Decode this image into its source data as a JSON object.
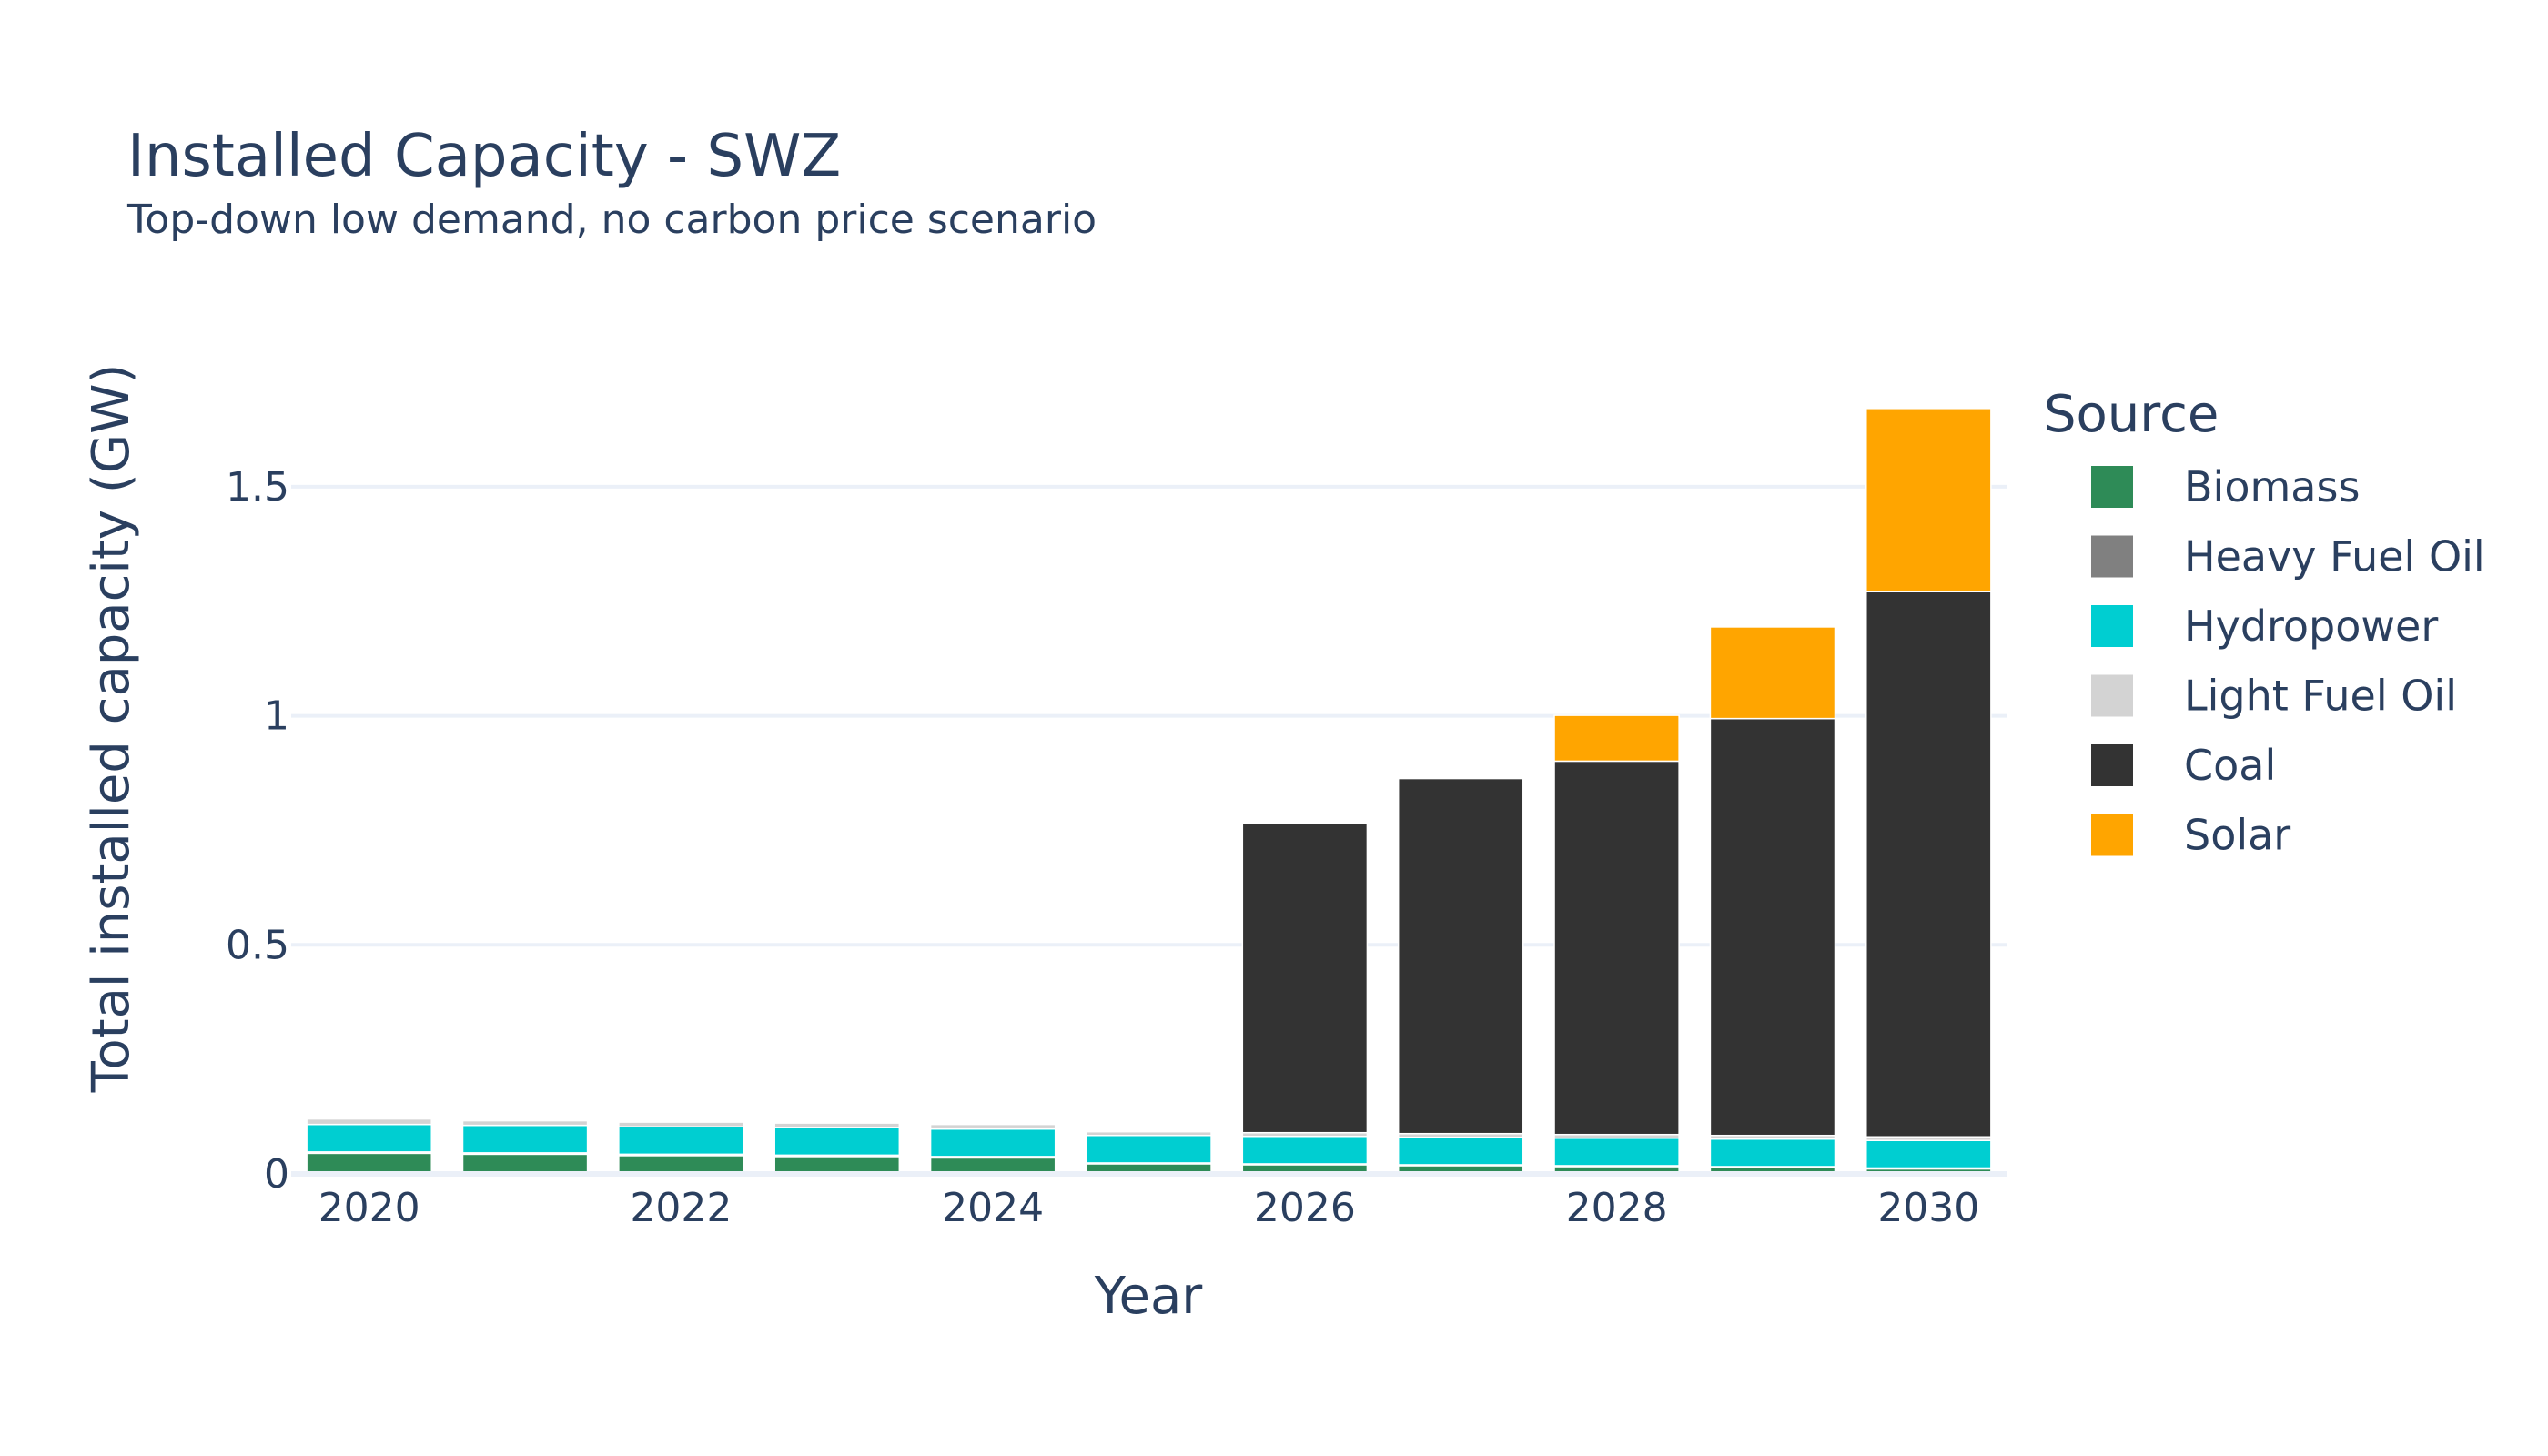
{
  "chart_data": {
    "type": "bar",
    "stacked": true,
    "title": "Installed Capacity - SWZ",
    "subtitle": "Top-down low demand, no carbon price scenario",
    "xlabel": "Year",
    "ylabel": "Total installed capacity (GW)",
    "ylim": [
      0,
      1.7
    ],
    "yticks": [
      0,
      0.5,
      1,
      1.5
    ],
    "ytick_labels": [
      "0",
      "0.5",
      "1",
      "1.5"
    ],
    "xticks": [
      2020,
      2022,
      2024,
      2026,
      2028,
      2030
    ],
    "xtick_labels": [
      "2020",
      "2022",
      "2024",
      "2026",
      "2028",
      "2030"
    ],
    "grid": true,
    "legend_title": "Source",
    "legend_position": "right",
    "categories": [
      2020,
      2021,
      2022,
      2023,
      2024,
      2025,
      2026,
      2027,
      2028,
      2029,
      2030
    ],
    "series": [
      {
        "name": "Biomass",
        "color": "#2e8b57",
        "values": [
          0.045,
          0.043,
          0.04,
          0.038,
          0.035,
          0.022,
          0.02,
          0.018,
          0.016,
          0.014,
          0.011
        ]
      },
      {
        "name": "Heavy Fuel Oil",
        "color": "#808080",
        "values": [
          0.003,
          0.003,
          0.003,
          0.003,
          0.003,
          0.002,
          0.002,
          0.002,
          0.002,
          0.002,
          0.002
        ]
      },
      {
        "name": "Hydropower",
        "color": "#00ced1",
        "values": [
          0.06,
          0.06,
          0.06,
          0.06,
          0.06,
          0.06,
          0.06,
          0.06,
          0.06,
          0.06,
          0.06
        ]
      },
      {
        "name": "Light Fuel Oil",
        "color": "#d3d3d3",
        "values": [
          0.012,
          0.01,
          0.01,
          0.01,
          0.01,
          0.008,
          0.008,
          0.008,
          0.008,
          0.008,
          0.008
        ]
      },
      {
        "name": "Coal",
        "color": "#333333",
        "values": [
          0,
          0,
          0,
          0,
          0,
          0,
          0.675,
          0.775,
          0.815,
          0.91,
          1.19
        ]
      },
      {
        "name": "Solar",
        "color": "#ffa500",
        "values": [
          0,
          0,
          0,
          0,
          0,
          0,
          0,
          0,
          0.1,
          0.2,
          0.4
        ]
      }
    ]
  }
}
